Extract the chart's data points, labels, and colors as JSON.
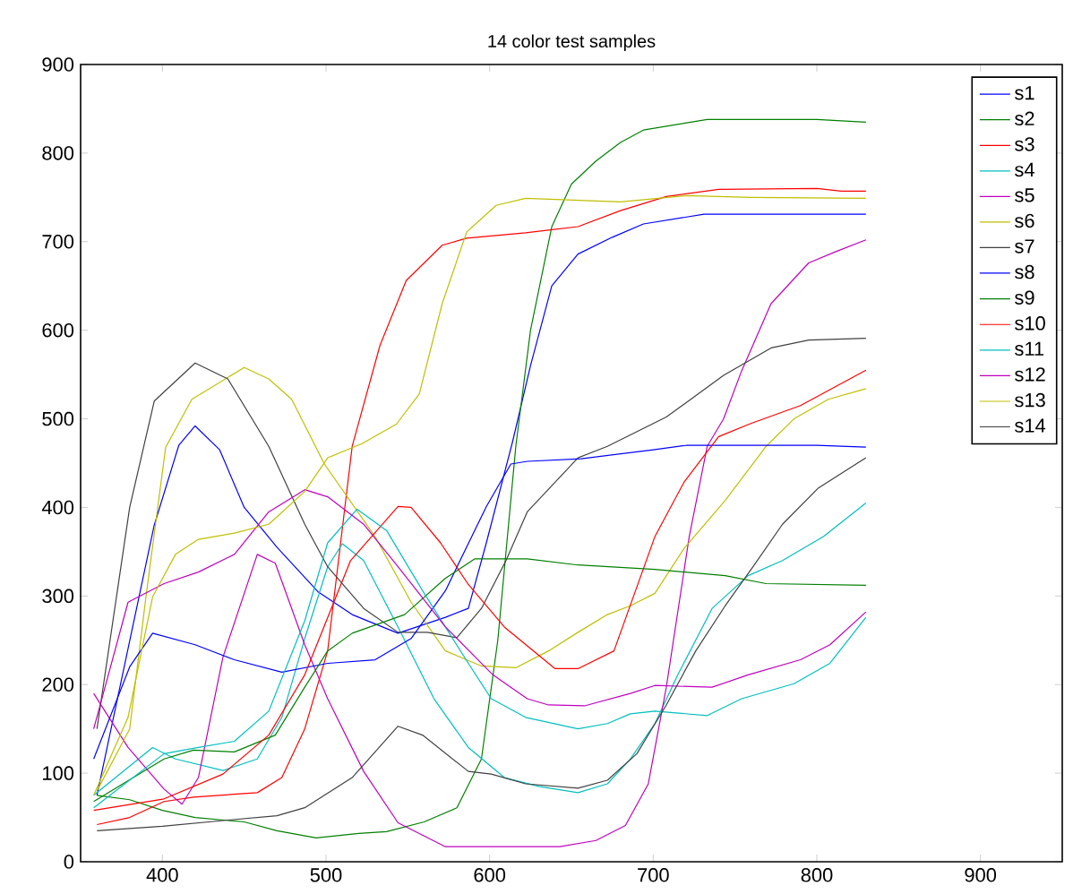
{
  "chart_data": {
    "type": "line",
    "title": "14 color test samples",
    "xlim": [
      350,
      950
    ],
    "ylim": [
      0,
      900
    ],
    "xticks": [
      400,
      500,
      600,
      700,
      800,
      900
    ],
    "yticks": [
      0,
      100,
      200,
      300,
      400,
      500,
      600,
      700,
      800,
      900
    ],
    "legend": "top right",
    "series": [
      {
        "name": "s1",
        "color": "#0000ff",
        "x": [
          360,
          395,
          410,
          420,
          435,
          450,
          470,
          495,
          516,
          544,
          573,
          587,
          598,
          614,
          625,
          638,
          654,
          675,
          694,
          731,
          830
        ],
        "values": [
          75,
          380,
          470,
          492,
          465,
          400,
          355,
          305,
          279,
          258,
          276,
          286,
          360,
          474,
          560,
          650,
          686,
          705,
          720,
          731,
          731
        ]
      },
      {
        "name": "s2",
        "color": "#008000",
        "x": [
          360,
          380,
          400,
          420,
          450,
          470,
          494,
          520,
          537,
          560,
          580,
          595,
          605,
          616,
          625,
          638,
          650,
          665,
          680,
          694,
          733,
          800,
          830
        ],
        "values": [
          75,
          70,
          58,
          50,
          45,
          35,
          27,
          32,
          34,
          45,
          61,
          116,
          250,
          469,
          600,
          717,
          765,
          791,
          812,
          826,
          838,
          838,
          835
        ]
      },
      {
        "name": "s3",
        "color": "#ff0000",
        "x": [
          360,
          380,
          401,
          419,
          458,
          473,
          487,
          501,
          516,
          533,
          549,
          571,
          586,
          622,
          654,
          680,
          708,
          740,
          800,
          815,
          830
        ],
        "values": [
          42,
          50,
          68,
          73,
          78,
          95,
          150,
          238,
          469,
          583,
          656,
          696,
          704,
          710,
          717,
          735,
          751,
          759,
          760,
          757,
          757
        ]
      },
      {
        "name": "s4",
        "color": "#00bfbf",
        "x": [
          358,
          394,
          408,
          437,
          458,
          473,
          487,
          501,
          510,
          523,
          544,
          566,
          587,
          609,
          630,
          654,
          672,
          686,
          701,
          715,
          736,
          758,
          779,
          804,
          830
        ],
        "values": [
          75,
          129,
          116,
          103,
          116,
          163,
          252,
          333,
          359,
          340,
          265,
          184,
          129,
          95,
          85,
          78,
          88,
          116,
          156,
          211,
          286,
          323,
          340,
          367,
          405
        ]
      },
      {
        "name": "s5",
        "color": "#bf00bf",
        "x": [
          358,
          379,
          401,
          412,
          422,
          437,
          458,
          469,
          487,
          501,
          523,
          544,
          573,
          643,
          665,
          683,
          697,
          708,
          722,
          733,
          743,
          754,
          772,
          795,
          812,
          830
        ],
        "values": [
          190,
          129,
          82,
          65,
          95,
          231,
          347,
          337,
          245,
          184,
          102,
          44,
          17,
          17,
          24,
          41,
          88,
          197,
          367,
          469,
          500,
          554,
          630,
          676,
          689,
          702
        ]
      },
      {
        "name": "s6",
        "color": "#bfbf00",
        "x": [
          360,
          380,
          390,
          402,
          418,
          450,
          465,
          479,
          499,
          530,
          552,
          573,
          595,
          616,
          636,
          654,
          672,
          686,
          701,
          719,
          744,
          769,
          786,
          807,
          830
        ],
        "values": [
          80,
          150,
          300,
          468,
          522,
          558,
          545,
          522,
          449,
          367,
          293,
          238,
          221,
          219,
          238,
          259,
          279,
          289,
          303,
          354,
          408,
          469,
          500,
          522,
          534
        ]
      },
      {
        "name": "s7",
        "color": "#404040",
        "x": [
          360,
          380,
          395,
          420,
          440,
          465,
          487,
          501,
          523,
          544,
          562,
          580,
          595,
          610,
          623,
          654,
          672,
          708,
          743,
          772,
          795,
          830
        ],
        "values": [
          150,
          400,
          520,
          563,
          545,
          469,
          381,
          333,
          286,
          259,
          259,
          253,
          286,
          340,
          395,
          456,
          469,
          502,
          549,
          580,
          589,
          591
        ]
      },
      {
        "name": "s8",
        "color": "#0000ff",
        "x": [
          358,
          380,
          394,
          420,
          444,
          473,
          501,
          530,
          552,
          573,
          598,
          613,
          623,
          656,
          700,
          720,
          800,
          830
        ],
        "values": [
          116,
          220,
          258,
          245,
          228,
          214,
          224,
          228,
          252,
          306,
          401,
          449,
          452,
          455,
          465,
          470,
          470,
          468
        ]
      },
      {
        "name": "s9",
        "color": "#008000",
        "x": [
          358,
          401,
          419,
          444,
          469,
          487,
          501,
          516,
          548,
          573,
          591,
          623,
          654,
          701,
          744,
          769,
          830
        ],
        "values": [
          68,
          116,
          126,
          124,
          143,
          197,
          238,
          258,
          279,
          320,
          342,
          342,
          335,
          330,
          323,
          314,
          312
        ]
      },
      {
        "name": "s10",
        "color": "#ff0000",
        "x": [
          358,
          401,
          437,
          465,
          487,
          515,
          544,
          552,
          570,
          587,
          609,
          640,
          654,
          676,
          701,
          719,
          740,
          760,
          790,
          810,
          830
        ],
        "values": [
          58,
          71,
          99,
          143,
          211,
          340,
          401,
          400,
          360,
          313,
          265,
          218,
          218,
          238,
          367,
          429,
          480,
          495,
          515,
          535,
          555
        ]
      },
      {
        "name": "s11",
        "color": "#00bfbf",
        "x": [
          358,
          401,
          422,
          444,
          465,
          487,
          501,
          519,
          537,
          559,
          587,
          601,
          622,
          654,
          672,
          686,
          701,
          733,
          754,
          786,
          808,
          830
        ],
        "values": [
          61,
          122,
          129,
          136,
          170,
          272,
          360,
          398,
          374,
          306,
          224,
          184,
          163,
          150,
          156,
          167,
          170,
          165,
          184,
          201,
          224,
          276
        ]
      },
      {
        "name": "s12",
        "color": "#bf00bf",
        "x": [
          358,
          379,
          401,
          422,
          444,
          465,
          487,
          501,
          523,
          544,
          573,
          602,
          623,
          636,
          658,
          686,
          701,
          736,
          758,
          790,
          808,
          830
        ],
        "values": [
          150,
          293,
          314,
          327,
          347,
          395,
          420,
          412,
          381,
          333,
          265,
          211,
          184,
          177,
          176,
          190,
          199,
          197,
          211,
          228,
          245,
          282
        ]
      },
      {
        "name": "s13",
        "color": "#bfbf00",
        "x": [
          358,
          379,
          394,
          408,
          422,
          444,
          465,
          487,
          501,
          522,
          543,
          557,
          571,
          586,
          604,
          622,
          680,
          720,
          760,
          830
        ],
        "values": [
          75,
          163,
          299,
          347,
          364,
          371,
          381,
          418,
          456,
          472,
          494,
          528,
          630,
          711,
          741,
          749,
          745,
          752,
          750,
          749
        ]
      },
      {
        "name": "s14",
        "color": "#404040",
        "x": [
          360,
          400,
          440,
          470,
          487,
          516,
          544,
          559,
          587,
          601,
          622,
          654,
          672,
          690,
          708,
          726,
          744,
          761,
          779,
          801,
          830
        ],
        "values": [
          35,
          40,
          47,
          52,
          61,
          95,
          153,
          143,
          102,
          99,
          88,
          83,
          92,
          122,
          177,
          238,
          289,
          333,
          381,
          422,
          456
        ]
      }
    ]
  }
}
